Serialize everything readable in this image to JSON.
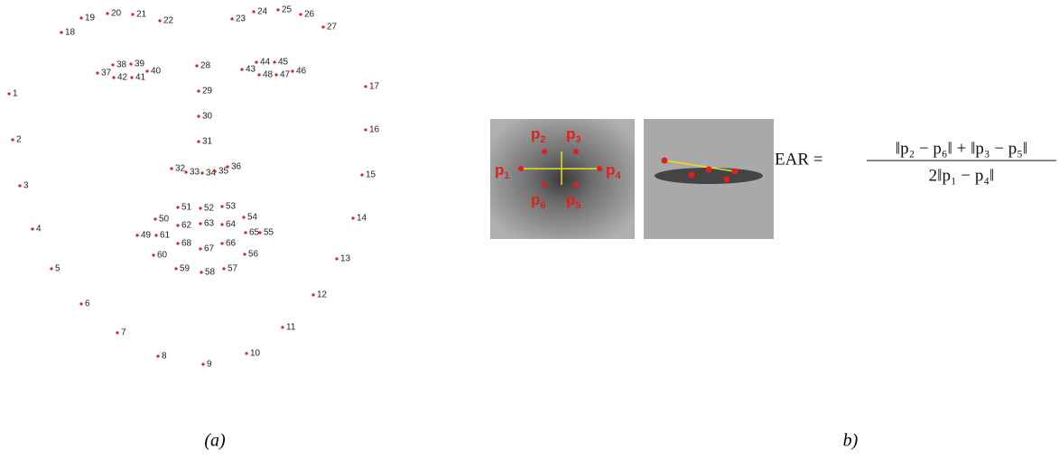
{
  "landmarks": [
    "1",
    "2",
    "3",
    "4",
    "5",
    "6",
    "7",
    "8",
    "9",
    "10",
    "11",
    "12",
    "13",
    "14",
    "15",
    "16",
    "17",
    "18",
    "19",
    "20",
    "21",
    "22",
    "23",
    "24",
    "25",
    "26",
    "27",
    "28",
    "29",
    "30",
    "31",
    "32",
    "33",
    "34",
    "35",
    "36",
    "37",
    "38",
    "39",
    "40",
    "41",
    "42",
    "43",
    "44",
    "45",
    "46",
    "47",
    "48",
    "49",
    "50",
    "51",
    "52",
    "53",
    "54",
    "55",
    "56",
    "57",
    "58",
    "59",
    "60",
    "61",
    "62",
    "63",
    "64",
    "65",
    "66",
    "67",
    "68"
  ],
  "eye_points": [
    {
      "base": "p",
      "sub": "1"
    },
    {
      "base": "p",
      "sub": "2"
    },
    {
      "base": "p",
      "sub": "3"
    },
    {
      "base": "p",
      "sub": "4"
    },
    {
      "base": "p",
      "sub": "5"
    },
    {
      "base": "p",
      "sub": "6"
    }
  ],
  "equation": {
    "lhs": "EAR =",
    "numerator": "‖p₂ − p₆‖ + ‖p₃ − p₅‖",
    "denominator": "2‖p₁ − p₄‖"
  },
  "captions": {
    "a": "(a)",
    "b": "b)"
  }
}
